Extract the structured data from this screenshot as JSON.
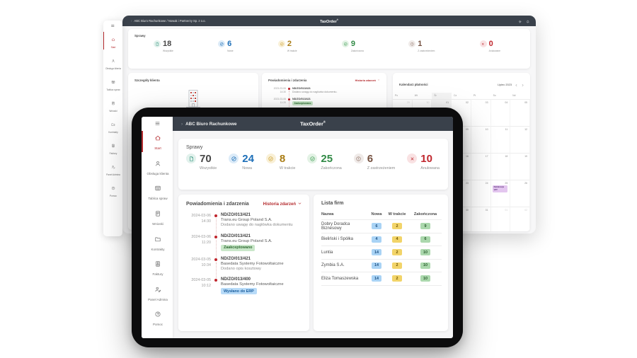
{
  "brand": {
    "logo": "TaxOrder",
    "logo_mark": "®",
    "breadcrumb_prefix": "›",
    "accent": "#b42b2e",
    "topbar_bg": "#3a414b"
  },
  "sidebar_items": [
    {
      "label": "Start",
      "icon": "home",
      "active": true
    },
    {
      "label": "Obsługa klienta",
      "icon": "customer"
    },
    {
      "label": "Tablica spraw",
      "icon": "board"
    },
    {
      "label": "Wnioski",
      "icon": "requests"
    },
    {
      "label": "Kontrakty",
      "icon": "folder"
    },
    {
      "label": "Faktury",
      "icon": "invoices"
    },
    {
      "label": "Panel Admina",
      "icon": "admin"
    },
    {
      "label": "Pomoc",
      "icon": "help"
    }
  ],
  "desktop": {
    "breadcrumb": "ABC Biuro Rachunkowe / Nowak i Partnerzy Sp. z o.o.",
    "cases": {
      "title": "Sprawy",
      "stats": [
        {
          "value": "18",
          "label": "Wszystkie",
          "icon": "doc",
          "color": "#3f9c87",
          "bg": "#e2f1ec",
          "num": "#474747"
        },
        {
          "value": "6",
          "label": "Nowe",
          "icon": "new",
          "color": "#2273b8",
          "bg": "#dcebf8",
          "num": "#1d6fb8"
        },
        {
          "value": "2",
          "label": "W trakcie",
          "icon": "check",
          "color": "#cfa438",
          "bg": "#f9f0d7",
          "num": "#a97c14"
        },
        {
          "value": "9",
          "label": "Zakończona",
          "icon": "check",
          "color": "#48a35c",
          "bg": "#e3f2e5",
          "num": "#318a46"
        },
        {
          "value": "1",
          "label": "Z zastrzeżeniem",
          "icon": "alert",
          "color": "#9b8176",
          "bg": "#efeae8",
          "num": "#74503f"
        },
        {
          "value": "0",
          "label": "Anulowane",
          "icon": "x",
          "color": "#c23a40",
          "bg": "#f9e2e3",
          "num": "#c0262d"
        }
      ]
    },
    "client": {
      "title": "Szczegóły klienta",
      "company": "Nowak i Partnerzy Sp. z o.o."
    },
    "notifications": {
      "title": "Powiadomienia i zdarzenia",
      "history_link": "Historia zdarzeń",
      "events": [
        {
          "date": "2023-03-06",
          "time": "14:30",
          "ref": "ND/ZO/013/421",
          "desc": "Dodano uwagę do nagłówka dokumentu."
        },
        {
          "date": "2023-03-06",
          "time": "11:20",
          "ref": "ND/ZO/013/421",
          "badge": {
            "text": "Zaakceptowano",
            "bg": "#c9e7c9",
            "color": "#2e6b31"
          }
        },
        {
          "date": "2023-03-06",
          "time": "",
          "ref": "ND/ZO/013/421"
        }
      ]
    },
    "calendar": {
      "title": "Kalendarz płatności",
      "month": "Lipiec 2023",
      "weekdays": [
        "Po",
        "Wt",
        "Śr",
        "Cz",
        "Pt",
        "So",
        "Nd"
      ],
      "highlight_col": 2,
      "event_colors": {
        "bg": "#e3c6ef",
        "color": "#5a2d79"
      },
      "weeks": [
        [
          {
            "d": "29",
            "m": 1
          },
          {
            "d": "30",
            "m": 1
          },
          {
            "d": "01"
          },
          {
            "d": "02"
          },
          {
            "d": "03"
          },
          {
            "d": "04"
          },
          {
            "d": "05"
          }
        ],
        [
          {
            "d": "06"
          },
          {
            "d": "07"
          },
          {
            "d": "08"
          },
          {
            "d": "09"
          },
          {
            "d": "10"
          },
          {
            "d": "11"
          },
          {
            "d": "12"
          }
        ],
        [
          {
            "d": "13"
          },
          {
            "d": "14"
          },
          {
            "d": "15"
          },
          {
            "d": "16"
          },
          {
            "d": "17"
          },
          {
            "d": "18"
          },
          {
            "d": "19"
          }
        ],
        [
          {
            "d": "20"
          },
          {
            "d": "21"
          },
          {
            "d": "22"
          },
          {
            "d": "23"
          },
          {
            "d": "24"
          },
          {
            "d": "25",
            "event": "Deklaracja VAT"
          },
          {
            "d": "26"
          }
        ],
        [
          {
            "d": "27"
          },
          {
            "d": "28"
          },
          {
            "d": "29"
          },
          {
            "d": "30"
          },
          {
            "d": "31"
          },
          {
            "d": "01",
            "m": 1
          },
          {
            "d": "02",
            "m": 1
          }
        ]
      ]
    }
  },
  "tablet": {
    "breadcrumb": "ABC Biuro Rachunkowe",
    "cases": {
      "title": "Sprawy",
      "stats": [
        {
          "value": "70",
          "label": "Wszystkie",
          "icon": "doc",
          "color": "#3f9c87",
          "bg": "#e2f1ec",
          "num": "#474747"
        },
        {
          "value": "24",
          "label": "Nowa",
          "icon": "new",
          "color": "#2273b8",
          "bg": "#dcebf8",
          "num": "#1d6fb8"
        },
        {
          "value": "8",
          "label": "W trakcie",
          "icon": "check",
          "color": "#cfa438",
          "bg": "#f9f0d7",
          "num": "#a97c14"
        },
        {
          "value": "25",
          "label": "Zakończona",
          "icon": "check",
          "color": "#48a35c",
          "bg": "#e3f2e5",
          "num": "#318a46"
        },
        {
          "value": "6",
          "label": "Z zastrzeżeniem",
          "icon": "alert",
          "color": "#9b8176",
          "bg": "#efeae8",
          "num": "#74503f"
        },
        {
          "value": "10",
          "label": "Anulowana",
          "icon": "x",
          "color": "#c23a40",
          "bg": "#f9e2e3",
          "num": "#c0262d"
        }
      ]
    },
    "notifications": {
      "title": "Powiadomienia i zdarzenia",
      "history_link": "Historia zdarzeń",
      "events": [
        {
          "date": "2024-03-06",
          "time": "14:30",
          "ref": "ND/ZO/013/421",
          "company": "Trans.eu Group Poland S.A.",
          "desc": "Dodano uwagę do nagłówka dokumentu"
        },
        {
          "date": "2024-03-06",
          "time": "11:20",
          "ref": "ND/ZO/013/421",
          "company": "Trans.eu Group Poland S.A.",
          "badge": {
            "text": "Zaakceptowano",
            "bg": "#c9e7c9",
            "color": "#2e6b31"
          }
        },
        {
          "date": "2024-03-05",
          "time": "10:34",
          "ref": "ND/ZO/013/421",
          "company": "Basedata Systemy Fotowoltaiczne",
          "desc": "Dodano opis kosztowy"
        },
        {
          "date": "2024-03-05",
          "time": "10:12",
          "ref": "ND/ZO/013/400",
          "company": "Basedata Systemy Fotowoltaiczne",
          "badge": {
            "text": "Wysłano do ERP",
            "bg": "#b8dbf8",
            "color": "#1b5e9e"
          }
        }
      ]
    },
    "companies": {
      "title": "Lista firm",
      "columns": [
        "Nazwa",
        "Nowa",
        "W trakcie",
        "Zakończona"
      ],
      "badge_colors": {
        "nowa": {
          "bg": "#a9d3f5",
          "color": "#1c4f80"
        },
        "wtrakcie": {
          "bg": "#f2d469",
          "color": "#6e5300"
        },
        "zakonczona": {
          "bg": "#abd8ad",
          "color": "#2a5c2d"
        }
      },
      "rows": [
        {
          "name": "Dobry Doradca Biznesowy",
          "nowa": "6",
          "wtrakcie": "2",
          "zakonczona": "9"
        },
        {
          "name": "Bieliński i Spółka",
          "nowa": "4",
          "wtrakcie": "4",
          "zakonczona": "6"
        },
        {
          "name": "Luntia",
          "nowa": "14",
          "wtrakcie": "2",
          "zakonczona": "10"
        },
        {
          "name": "Zymbia S.A.",
          "nowa": "14",
          "wtrakcie": "2",
          "zakonczona": "10"
        },
        {
          "name": "Eliza Tomaszewska",
          "nowa": "14",
          "wtrakcie": "2",
          "zakonczona": "10"
        }
      ]
    }
  }
}
